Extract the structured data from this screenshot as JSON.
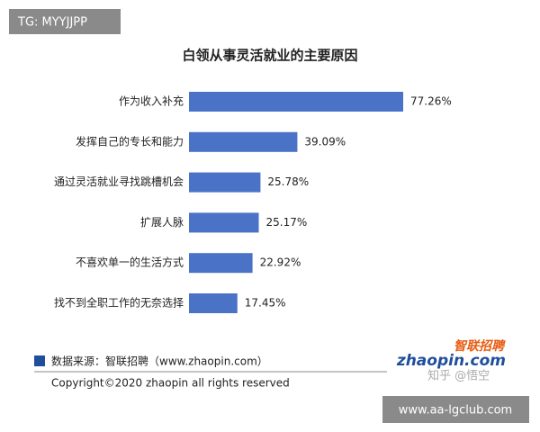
{
  "chart_data": {
    "type": "bar",
    "orientation": "horizontal",
    "title": "白领从事灵活就业的主要原因",
    "categories": [
      "作为收入补充",
      "发挥自己的专长和能力",
      "通过灵活就业寻找跳槽机会",
      "扩展人脉",
      "不喜欢单一的生活方式",
      "找不到全职工作的无奈选择"
    ],
    "values": [
      77.26,
      39.09,
      25.78,
      25.17,
      22.92,
      17.45
    ],
    "value_labels": [
      "77.26%",
      "39.09%",
      "25.78%",
      "25.17%",
      "22.92%",
      "17.45%"
    ],
    "color": "#4a72c6"
  },
  "watermark": "TG: MYYJJPP",
  "source": "数据来源：智联招聘（www.zhaopin.com）",
  "copyright": "Copyright©2020 zhaopin all rights reserved",
  "logo": {
    "cn": "智联招聘",
    "en": "zhaopin.com"
  },
  "credit": "知乎 @悟空",
  "site": "www.aa-lgclub.com"
}
